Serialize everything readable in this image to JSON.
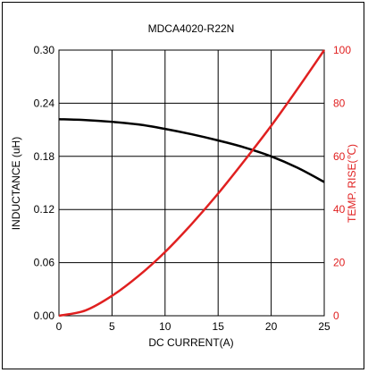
{
  "chart_data": {
    "type": "line",
    "title": "MDCA4020-R22N",
    "xlabel": "DC CURRENT(A)",
    "ylabel_left": "INDUCTANCE (uH)",
    "ylabel_right": "TEMP. RISE(℃)",
    "xlim": [
      0,
      25
    ],
    "ylim_left": [
      0,
      0.3
    ],
    "ylim_right": [
      0,
      100
    ],
    "x_ticks": [
      "0",
      "5",
      "10",
      "15",
      "20",
      "25"
    ],
    "y_ticks_left": [
      "0.00",
      "0.06",
      "0.12",
      "0.18",
      "0.24",
      "0.30"
    ],
    "y_ticks_right": [
      "0",
      "20",
      "40",
      "60",
      "80",
      "100"
    ],
    "grid": true,
    "colors": {
      "inductance": "#000000",
      "temp_rise": "#e02020"
    },
    "series": [
      {
        "axis": "left",
        "x": [
          0,
          2.5,
          5,
          7.5,
          10,
          12.5,
          15,
          17.5,
          20,
          22.5,
          25
        ],
        "values": [
          0.222,
          0.221,
          0.219,
          0.216,
          0.211,
          0.205,
          0.198,
          0.19,
          0.18,
          0.167,
          0.151
        ]
      },
      {
        "axis": "right",
        "x": [
          0,
          2.5,
          5,
          7.5,
          10,
          12.5,
          15,
          17.5,
          20,
          22.5,
          25
        ],
        "values": [
          0,
          2.0,
          7.5,
          15.0,
          24.0,
          34.5,
          46.0,
          58.5,
          71.5,
          85.5,
          100
        ]
      }
    ]
  }
}
